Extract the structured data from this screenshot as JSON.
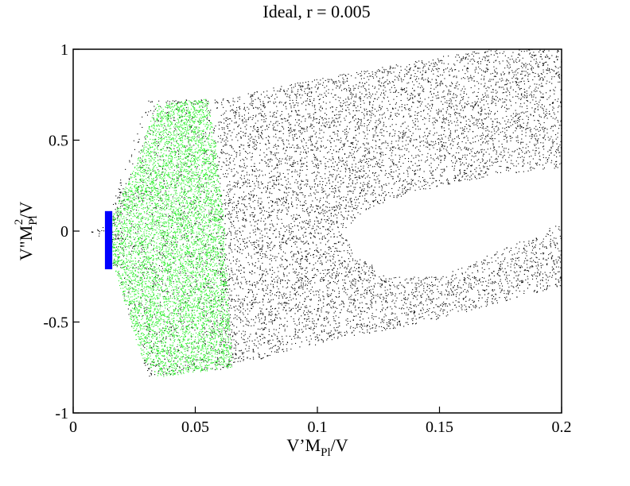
{
  "chart_data": {
    "type": "scatter",
    "title": "Ideal, r = 0.005",
    "xlabel": {
      "base": "V’M",
      "sub": "Pl",
      "tail": "/V"
    },
    "ylabel": {
      "base": "V\"M",
      "sub": "Pl",
      "sup": "2",
      "tail": "/V"
    },
    "xlim": [
      0,
      0.2
    ],
    "ylim": [
      -1,
      1
    ],
    "x_ticks": [
      {
        "value": 0,
        "label": "0"
      },
      {
        "value": 0.05,
        "label": "0.05"
      },
      {
        "value": 0.1,
        "label": "0.1"
      },
      {
        "value": 0.15,
        "label": "0.15"
      },
      {
        "value": 0.2,
        "label": "0.2"
      }
    ],
    "y_ticks": [
      {
        "value": -1,
        "label": "-1"
      },
      {
        "value": -0.5,
        "label": "-0.5"
      },
      {
        "value": 0,
        "label": "0"
      },
      {
        "value": 0.5,
        "label": "0.5"
      },
      {
        "value": 1,
        "label": "1"
      }
    ],
    "grid": false,
    "legend": "none",
    "series": [
      {
        "color": "#000000",
        "marker": "dot",
        "region_outline": [
          [
            0.006,
            0.0
          ],
          [
            0.013,
            0.03
          ],
          [
            0.03,
            0.72
          ],
          [
            0.06,
            0.73
          ],
          [
            0.1,
            0.84
          ],
          [
            0.15,
            0.96
          ],
          [
            0.2,
            1.06
          ],
          [
            0.2,
            0.35
          ],
          [
            0.17,
            0.3
          ],
          [
            0.14,
            0.22
          ],
          [
            0.12,
            0.12
          ],
          [
            0.11,
            0.0
          ],
          [
            0.115,
            -0.12
          ],
          [
            0.13,
            -0.25
          ],
          [
            0.15,
            -0.25
          ],
          [
            0.18,
            -0.07
          ],
          [
            0.2,
            0.05
          ],
          [
            0.2,
            -0.3
          ],
          [
            0.15,
            -0.48
          ],
          [
            0.1,
            -0.62
          ],
          [
            0.06,
            -0.76
          ],
          [
            0.03,
            -0.8
          ],
          [
            0.013,
            -0.04
          ]
        ]
      },
      {
        "color": "#22ee22",
        "marker": "dot",
        "region_outline": [
          [
            0.013,
            0.0
          ],
          [
            0.025,
            0.35
          ],
          [
            0.034,
            0.7
          ],
          [
            0.055,
            0.73
          ],
          [
            0.058,
            0.5
          ],
          [
            0.062,
            0.0
          ],
          [
            0.065,
            -0.75
          ],
          [
            0.035,
            -0.8
          ],
          [
            0.028,
            -0.7
          ],
          [
            0.02,
            -0.35
          ],
          [
            0.013,
            -0.05
          ]
        ]
      },
      {
        "color": "#0000ff",
        "marker": "bar",
        "x": [
          0.013,
          0.016
        ],
        "y": [
          -0.21,
          0.11
        ]
      }
    ]
  }
}
